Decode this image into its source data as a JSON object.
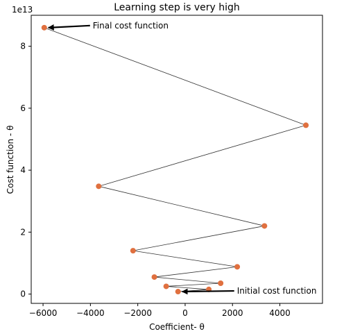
{
  "chart_data": {
    "type": "scatter",
    "title": "Learning step is very high",
    "xlabel": "Coefficient- θ",
    "ylabel": "Cost function - θ",
    "y_offset_label": "1e13",
    "xlim": [
      -6500,
      5800
    ],
    "ylim": [
      -0.3,
      9.0
    ],
    "y_scale_factor": 10000000000000.0,
    "x_ticks": [
      -6000,
      -4000,
      -2000,
      0,
      2000,
      4000
    ],
    "x_tick_labels": [
      "−6000",
      "−4000",
      "−2000",
      "0",
      "2000",
      "4000"
    ],
    "y_ticks": [
      0,
      2,
      4,
      6,
      8
    ],
    "y_tick_labels": [
      "0",
      "2",
      "4",
      "6",
      "8"
    ],
    "grid": false,
    "points": [
      {
        "x": -300,
        "y": 0.08
      },
      {
        "x": 1000,
        "y": 0.15
      },
      {
        "x": -800,
        "y": 0.25
      },
      {
        "x": 1500,
        "y": 0.35
      },
      {
        "x": -1300,
        "y": 0.55
      },
      {
        "x": 2200,
        "y": 0.88
      },
      {
        "x": -2200,
        "y": 1.4
      },
      {
        "x": 3350,
        "y": 2.2
      },
      {
        "x": -3650,
        "y": 3.48
      },
      {
        "x": 5100,
        "y": 5.45
      },
      {
        "x": -5950,
        "y": 8.6
      }
    ],
    "marker_color": "#e0703f",
    "line_color": "#333333",
    "annotations": [
      {
        "text": "Final cost function",
        "point_index": 10
      },
      {
        "text": "Initial cost function",
        "point_index": 0
      }
    ]
  }
}
